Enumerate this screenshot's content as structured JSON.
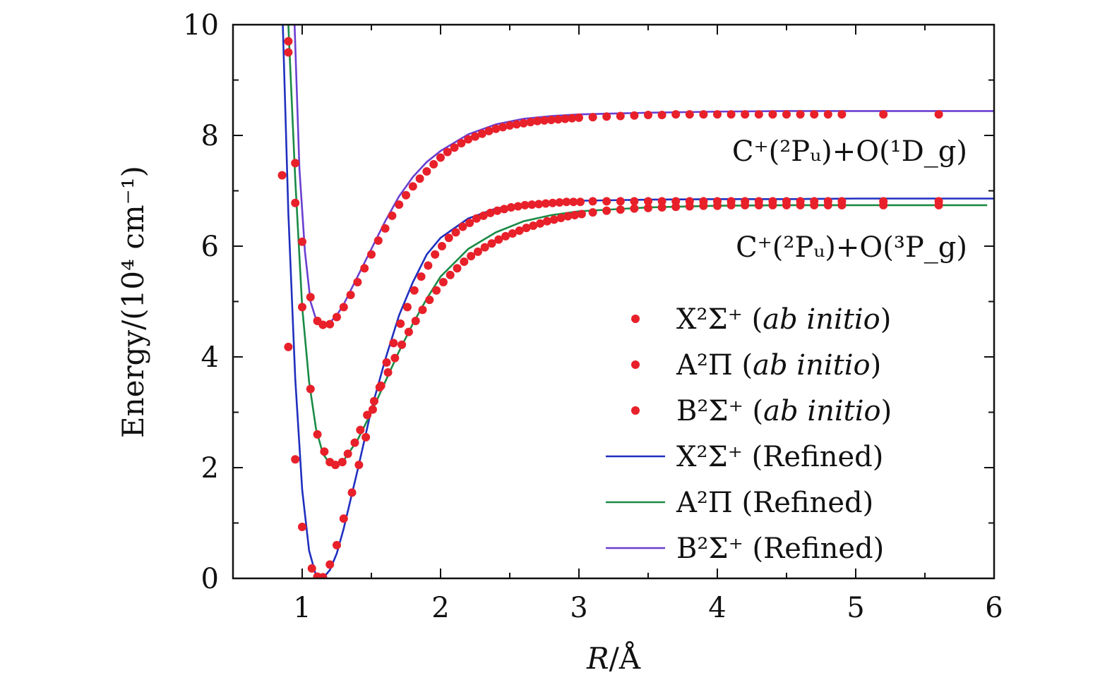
{
  "chart_data": {
    "type": "line",
    "xlabel_italic": "R",
    "xlabel_unit": "/Å",
    "ylabel": "Energy/(10⁴ cm⁻¹)",
    "xlim": [
      0.5,
      6
    ],
    "ylim": [
      0,
      10
    ],
    "xticks": [
      1,
      2,
      3,
      4,
      5,
      6
    ],
    "yticks": [
      0,
      2,
      4,
      6,
      8,
      10
    ],
    "annotations": [
      {
        "text": "C⁺(²Pᵤ)+O(¹D_g)",
        "x": 5.85,
        "y": 7.7
      },
      {
        "text": "C⁺(²Pᵤ)+O(³P_g)",
        "x": 5.85,
        "y": 5.9
      }
    ],
    "legend_position": "bottom-right",
    "legend": [
      {
        "label": "X²Σ⁺ (ab initio)",
        "marker": "dot",
        "color": "#e8202a"
      },
      {
        "label": "A²Π (ab initio)",
        "marker": "dot",
        "color": "#e8202a"
      },
      {
        "label": "B²Σ⁺ (ab initio)",
        "marker": "dot",
        "color": "#e8202a"
      },
      {
        "label": "X²Σ⁺ (Refined)",
        "marker": "line",
        "color": "#1f2fbf"
      },
      {
        "label": "A²Π (Refined)",
        "marker": "line",
        "color": "#1a8a45"
      },
      {
        "label": "B²Σ⁺ (Refined)",
        "marker": "line",
        "color": "#6a3fd0"
      }
    ],
    "series": [
      {
        "state": "X",
        "type": "line",
        "color": "#1f2fbf",
        "x": [
          0.86,
          0.9,
          0.95,
          1.0,
          1.05,
          1.1,
          1.15,
          1.2,
          1.25,
          1.3,
          1.4,
          1.5,
          1.6,
          1.7,
          1.8,
          1.9,
          2.0,
          2.2,
          2.4,
          2.6,
          2.8,
          3.0,
          3.5,
          4.0,
          4.5,
          5.0,
          5.5,
          6.0
        ],
        "y": [
          10.0,
          6.6,
          3.6,
          1.6,
          0.5,
          0.05,
          0.0,
          0.15,
          0.45,
          0.9,
          1.95,
          3.05,
          3.95,
          4.75,
          5.35,
          5.85,
          6.15,
          6.5,
          6.68,
          6.76,
          6.8,
          6.82,
          6.84,
          6.85,
          6.85,
          6.86,
          6.86,
          6.86
        ]
      },
      {
        "state": "A",
        "type": "line",
        "color": "#1a8a45",
        "x": [
          0.9,
          0.95,
          1.0,
          1.05,
          1.1,
          1.15,
          1.2,
          1.25,
          1.3,
          1.4,
          1.5,
          1.6,
          1.7,
          1.8,
          1.9,
          2.0,
          2.2,
          2.4,
          2.6,
          2.8,
          3.0,
          3.5,
          4.0,
          4.5,
          5.0,
          5.5,
          5.95
        ],
        "y": [
          10.0,
          7.2,
          4.9,
          3.55,
          2.7,
          2.25,
          2.07,
          2.04,
          2.13,
          2.5,
          3.0,
          3.55,
          4.1,
          4.6,
          5.05,
          5.45,
          5.95,
          6.25,
          6.45,
          6.56,
          6.63,
          6.7,
          6.73,
          6.74,
          6.74,
          6.74,
          6.74
        ]
      },
      {
        "state": "B",
        "type": "line",
        "color": "#6a3fd0",
        "x": [
          0.945,
          0.98,
          1.02,
          1.06,
          1.1,
          1.15,
          1.2,
          1.25,
          1.3,
          1.4,
          1.5,
          1.6,
          1.7,
          1.8,
          1.9,
          2.0,
          2.2,
          2.4,
          2.6,
          2.8,
          3.0,
          3.5,
          4.0,
          4.5,
          5.0,
          5.5,
          6.0
        ],
        "y": [
          10.0,
          7.4,
          5.9,
          5.0,
          4.68,
          4.58,
          4.62,
          4.75,
          4.95,
          5.45,
          5.95,
          6.45,
          6.9,
          7.25,
          7.52,
          7.72,
          8.02,
          8.2,
          8.3,
          8.35,
          8.38,
          8.41,
          8.43,
          8.44,
          8.44,
          8.44,
          8.44
        ]
      },
      {
        "state": "X",
        "type": "scatter",
        "color": "#e8202a",
        "x": [
          0.9,
          0.95,
          1.0,
          1.07,
          1.11,
          1.15,
          1.2,
          1.25,
          1.3,
          1.36,
          1.41,
          1.46,
          1.51,
          1.56,
          1.61,
          1.66,
          1.71,
          1.76,
          1.81,
          1.86,
          1.91,
          1.96,
          2.01,
          2.06,
          2.11,
          2.16,
          2.21,
          2.26,
          2.31,
          2.36,
          2.41,
          2.46,
          2.51,
          2.56,
          2.61,
          2.66,
          2.71,
          2.76,
          2.81,
          2.86,
          2.91,
          2.96,
          3.01,
          3.1,
          3.2,
          3.3,
          3.4,
          3.5,
          3.6,
          3.7,
          3.8,
          3.9,
          4.0,
          4.1,
          4.2,
          4.3,
          4.4,
          4.5,
          4.6,
          4.7,
          4.8,
          4.9,
          5.2,
          5.6
        ],
        "y": [
          4.18,
          2.15,
          0.93,
          0.18,
          0.03,
          0.02,
          0.25,
          0.6,
          1.08,
          1.55,
          2.05,
          2.55,
          3.05,
          3.45,
          3.9,
          4.25,
          4.6,
          4.9,
          5.2,
          5.45,
          5.65,
          5.85,
          6.0,
          6.15,
          6.25,
          6.35,
          6.42,
          6.5,
          6.55,
          6.6,
          6.64,
          6.67,
          6.7,
          6.72,
          6.74,
          6.75,
          6.76,
          6.77,
          6.78,
          6.79,
          6.8,
          6.8,
          6.8,
          6.81,
          6.81,
          6.81,
          6.81,
          6.81,
          6.81,
          6.81,
          6.81,
          6.81,
          6.81,
          6.81,
          6.81,
          6.81,
          6.81,
          6.81,
          6.81,
          6.81,
          6.81,
          6.81,
          6.81,
          6.81
        ]
      },
      {
        "state": "A",
        "type": "scatter",
        "color": "#e8202a",
        "x": [
          0.855,
          0.9,
          0.95,
          1.0,
          1.06,
          1.11,
          1.16,
          1.2,
          1.24,
          1.29,
          1.33,
          1.38,
          1.42,
          1.47,
          1.52,
          1.57,
          1.62,
          1.67,
          1.72,
          1.77,
          1.82,
          1.87,
          1.92,
          1.97,
          2.02,
          2.07,
          2.12,
          2.17,
          2.22,
          2.27,
          2.32,
          2.37,
          2.42,
          2.47,
          2.52,
          2.57,
          2.62,
          2.67,
          2.72,
          2.77,
          2.82,
          2.87,
          2.92,
          2.97,
          3.02,
          3.1,
          3.2,
          3.3,
          3.4,
          3.5,
          3.6,
          3.7,
          3.8,
          3.9,
          4.0,
          4.1,
          4.2,
          4.3,
          4.4,
          4.5,
          4.6,
          4.7,
          4.8,
          4.9,
          5.2,
          5.6
        ],
        "y": [
          7.28,
          9.5,
          6.78,
          4.9,
          3.42,
          2.6,
          2.29,
          2.1,
          2.05,
          2.1,
          2.25,
          2.45,
          2.68,
          2.95,
          3.2,
          3.48,
          3.72,
          3.98,
          4.22,
          4.45,
          4.65,
          4.85,
          5.03,
          5.2,
          5.35,
          5.48,
          5.6,
          5.72,
          5.82,
          5.9,
          5.98,
          6.05,
          6.12,
          6.18,
          6.23,
          6.28,
          6.33,
          6.37,
          6.41,
          6.45,
          6.48,
          6.51,
          6.54,
          6.56,
          6.58,
          6.61,
          6.64,
          6.66,
          6.68,
          6.69,
          6.7,
          6.71,
          6.72,
          6.73,
          6.73,
          6.74,
          6.74,
          6.74,
          6.74,
          6.74,
          6.74,
          6.74,
          6.74,
          6.74,
          6.74,
          6.74
        ]
      },
      {
        "state": "B",
        "type": "scatter",
        "color": "#e8202a",
        "x": [
          0.9,
          0.95,
          1.0,
          1.06,
          1.11,
          1.15,
          1.2,
          1.25,
          1.3,
          1.35,
          1.4,
          1.45,
          1.5,
          1.55,
          1.6,
          1.65,
          1.7,
          1.75,
          1.8,
          1.85,
          1.9,
          1.95,
          2.0,
          2.05,
          2.1,
          2.15,
          2.2,
          2.25,
          2.3,
          2.35,
          2.4,
          2.45,
          2.5,
          2.55,
          2.6,
          2.65,
          2.7,
          2.75,
          2.8,
          2.85,
          2.9,
          2.95,
          3.0,
          3.1,
          3.2,
          3.3,
          3.4,
          3.5,
          3.6,
          3.7,
          3.8,
          3.9,
          4.0,
          4.1,
          4.2,
          4.3,
          4.4,
          4.5,
          4.6,
          4.7,
          4.8,
          4.9,
          5.2,
          5.6
        ],
        "y": [
          9.7,
          7.5,
          6.08,
          5.08,
          4.65,
          4.58,
          4.59,
          4.72,
          4.9,
          5.12,
          5.35,
          5.6,
          5.85,
          6.1,
          6.32,
          6.55,
          6.75,
          6.92,
          7.08,
          7.22,
          7.35,
          7.48,
          7.6,
          7.7,
          7.78,
          7.86,
          7.93,
          7.98,
          8.03,
          8.08,
          8.12,
          8.15,
          8.18,
          8.2,
          8.22,
          8.24,
          8.26,
          8.27,
          8.28,
          8.29,
          8.3,
          8.31,
          8.32,
          8.33,
          8.34,
          8.35,
          8.36,
          8.37,
          8.37,
          8.38,
          8.38,
          8.38,
          8.38,
          8.38,
          8.38,
          8.38,
          8.38,
          8.38,
          8.38,
          8.38,
          8.38,
          8.38,
          8.38,
          8.38
        ]
      }
    ]
  }
}
